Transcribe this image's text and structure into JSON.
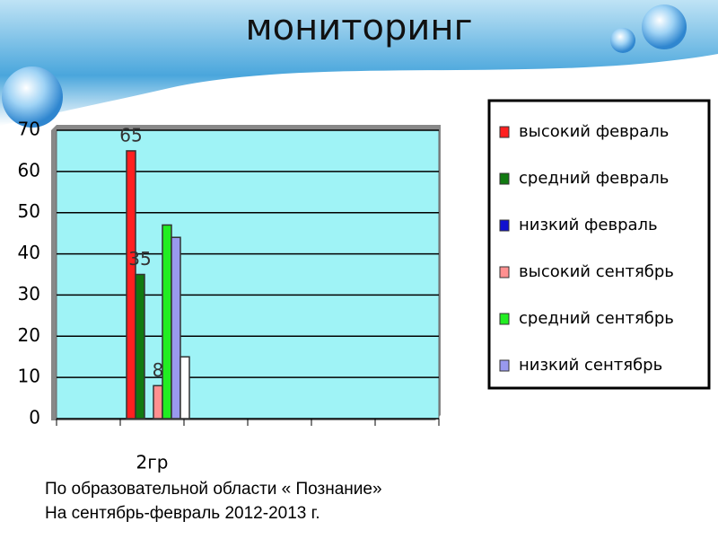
{
  "chart_data": {
    "type": "bar",
    "title": "мониторинг",
    "categories": [
      null,
      "2гр",
      null,
      null,
      null,
      null
    ],
    "series": [
      {
        "name": "высокий февраль",
        "color": "#ff2020",
        "values": [
          null,
          65,
          null,
          null,
          null,
          null
        ],
        "show_value_labels": true
      },
      {
        "name": "средний февраль",
        "color": "#117a11",
        "values": [
          null,
          35,
          null,
          null,
          null,
          null
        ],
        "show_value_labels": true
      },
      {
        "name": "низкий февраль",
        "color": "#1010d0",
        "values": [
          null,
          0,
          null,
          null,
          null,
          null
        ]
      },
      {
        "name": "высокий сентябрь",
        "color": "#ff9090",
        "values": [
          null,
          8,
          null,
          null,
          null,
          null
        ],
        "show_value_labels": true
      },
      {
        "name": "средний сентябрь",
        "color": "#22ee22",
        "values": [
          null,
          47,
          null,
          null,
          null,
          null
        ]
      },
      {
        "name": "низкий сентябрь",
        "color": "#9999ee",
        "values": [
          null,
          44,
          null,
          null,
          null,
          null
        ]
      },
      {
        "color": "#ffffff",
        "values": [
          null,
          15,
          null,
          null,
          null,
          null
        ]
      }
    ],
    "ylim": [
      0,
      70
    ],
    "yticks": [
      0,
      10,
      20,
      30,
      40,
      50,
      60,
      70
    ],
    "grid": true,
    "legend": "right",
    "plot_color": "#9ff3f6"
  },
  "footer": [
    "По образовательной области « Познание»",
    "На сентябрь-февраль 2012-2013 г."
  ]
}
